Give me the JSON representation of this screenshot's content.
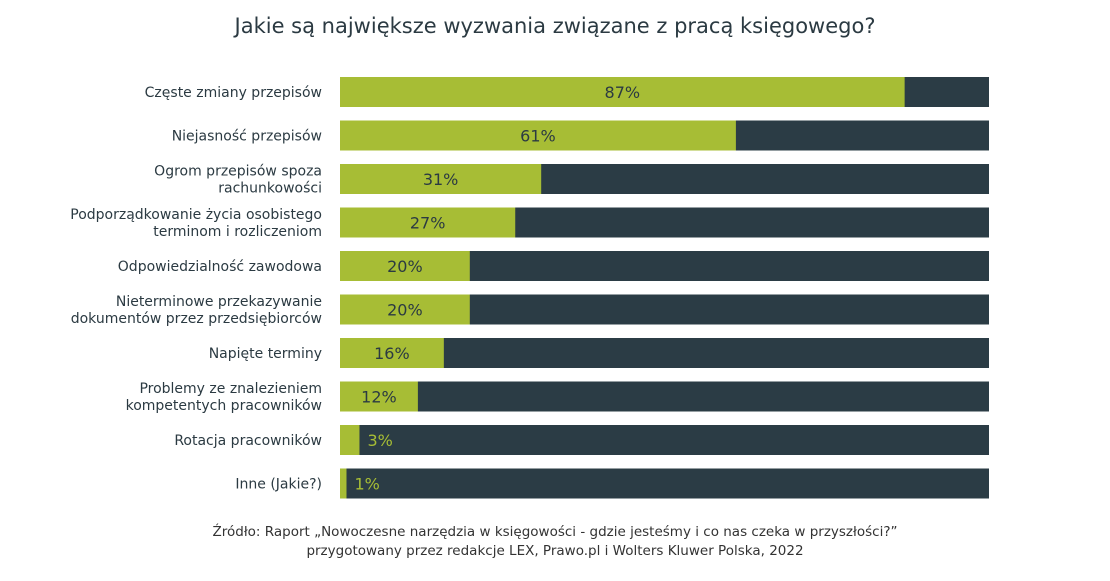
{
  "chart_data": {
    "type": "bar",
    "orientation": "horizontal",
    "stacked_to": 100,
    "title": "Jakie są największe wyzwania związane z pracą księgowego?",
    "categories": [
      [
        "Częste zmiany przepisów"
      ],
      [
        "Niejasność przepisów"
      ],
      [
        "Ogrom przepisów spoza",
        "rachunkowości"
      ],
      [
        "Podporządkowanie życia osobistego",
        "terminom i rozliczeniom"
      ],
      [
        "Odpowiedzialność zawodowa"
      ],
      [
        "Nieterminowe przekazywanie",
        "dokumentów przez przedsiębiorców"
      ],
      [
        "Napięte terminy"
      ],
      [
        "Problemy ze znalezieniem",
        "kompetentych pracowników"
      ],
      [
        "Rotacja pracowników"
      ],
      [
        "Inne (Jakie?)"
      ]
    ],
    "values": [
      87,
      61,
      31,
      27,
      20,
      20,
      16,
      12,
      3,
      1
    ],
    "value_labels": [
      "87%",
      "61%",
      "31%",
      "27%",
      "20%",
      "20%",
      "16%",
      "12%",
      "3%",
      "1%"
    ],
    "xlim": [
      0,
      100
    ],
    "grid": false,
    "colors": {
      "value": "#a7bd35",
      "remainder": "#2b3c45",
      "label_inside": "#2b3a42",
      "label_outside": "#a7bd35",
      "text": "#2b3a42"
    }
  },
  "source": {
    "line1": "Źródło: Raport „Nowoczesne narzędzia w księgowości - gdzie jesteśmy i co nas czeka w przyszłości?”",
    "line2": "przygotowany przez redakcje LEX, Prawo.pl i Wolters Kluwer Polska, 2022"
  }
}
